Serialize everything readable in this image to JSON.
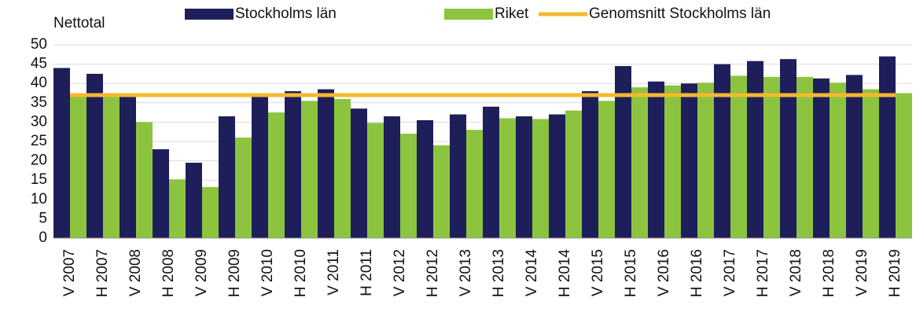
{
  "chart_data": {
    "type": "bar",
    "y_label": "Nettotal",
    "categories": [
      "V 2007",
      "H 2007",
      "V 2008",
      "H 2008",
      "V 2009",
      "H 2009",
      "V 2010",
      "H 2010",
      "V 2011",
      "H 2011",
      "V 2012",
      "H 2012",
      "V 2013",
      "H 2013",
      "V 2014",
      "H 2014",
      "V 2015",
      "H 2015",
      "V 2016",
      "H 2016",
      "V 2017",
      "H 2017",
      "V 2018",
      "H 2018",
      "V 2019",
      "H 2019"
    ],
    "series": [
      {
        "name": "Stockholms län",
        "color": "#1e1e5a",
        "type": "bar",
        "values": [
          44,
          42.5,
          37,
          23,
          19.5,
          31.5,
          37,
          38,
          38.5,
          33.5,
          31.5,
          30.5,
          32,
          34,
          31.5,
          32,
          38,
          44.5,
          40.5,
          40,
          45,
          45.8,
          46.3,
          41.3,
          42.2,
          47
        ]
      },
      {
        "name": "Riket",
        "color": "#8cc43f",
        "type": "bar",
        "values": [
          37,
          37,
          30,
          15.2,
          13.2,
          26,
          32.5,
          35.5,
          36,
          29.8,
          27,
          24,
          28,
          31,
          30.8,
          33,
          35.5,
          39,
          39.5,
          40.2,
          42,
          41.7,
          41.7,
          40.2,
          38.5,
          37.5
        ]
      },
      {
        "name": "Genomsnitt Stockholms län",
        "color": "#f5b830",
        "type": "line",
        "values": [
          37,
          37,
          37,
          37,
          37,
          37,
          37,
          37,
          37,
          37,
          37,
          37,
          37,
          37,
          37,
          37,
          37,
          37,
          37,
          37,
          37,
          37,
          37,
          37,
          37,
          37
        ]
      }
    ],
    "ylim": [
      0,
      50
    ],
    "yticks": [
      0,
      5,
      10,
      15,
      20,
      25,
      30,
      35,
      40,
      45,
      50
    ],
    "grid": true
  }
}
